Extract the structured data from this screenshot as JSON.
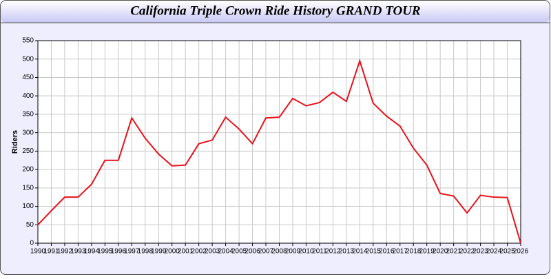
{
  "chart_data": {
    "type": "line",
    "title": "California Triple Crown Ride History GRAND TOUR",
    "y_label": "Riders",
    "x": [
      1990,
      1991,
      1992,
      1993,
      1994,
      1995,
      1996,
      1997,
      1998,
      1999,
      2000,
      2001,
      2002,
      2003,
      2004,
      2005,
      2006,
      2007,
      2008,
      2009,
      2010,
      2011,
      2012,
      2013,
      2014,
      2015,
      2016,
      2017,
      2018,
      2019,
      2020,
      2021,
      2022,
      2023,
      2024,
      2025,
      2026
    ],
    "series": [
      {
        "name": "Riders",
        "color": "#e8101a",
        "values": [
          50,
          88,
          125,
          125,
          160,
          225,
          225,
          340,
          285,
          242,
          210,
          212,
          270,
          280,
          342,
          310,
          270,
          340,
          342,
          393,
          373,
          382,
          410,
          385,
          495,
          380,
          345,
          318,
          258,
          212,
          135,
          128,
          82,
          130,
          125,
          124,
          0
        ]
      }
    ],
    "xlim": [
      1990,
      2026
    ],
    "xticks": [
      1990,
      1991,
      1992,
      1993,
      1994,
      1995,
      1996,
      1997,
      1998,
      1999,
      2000,
      2001,
      2002,
      2003,
      2004,
      2005,
      2006,
      2007,
      2008,
      2009,
      2010,
      2011,
      2012,
      2013,
      2014,
      2015,
      2016,
      2017,
      2018,
      2019,
      2020,
      2021,
      2022,
      2023,
      2024,
      2025,
      2026
    ],
    "ylim": [
      0,
      550
    ],
    "yticks": [
      0,
      50,
      100,
      150,
      200,
      250,
      300,
      350,
      400,
      450,
      500,
      550
    ],
    "grid": true
  }
}
